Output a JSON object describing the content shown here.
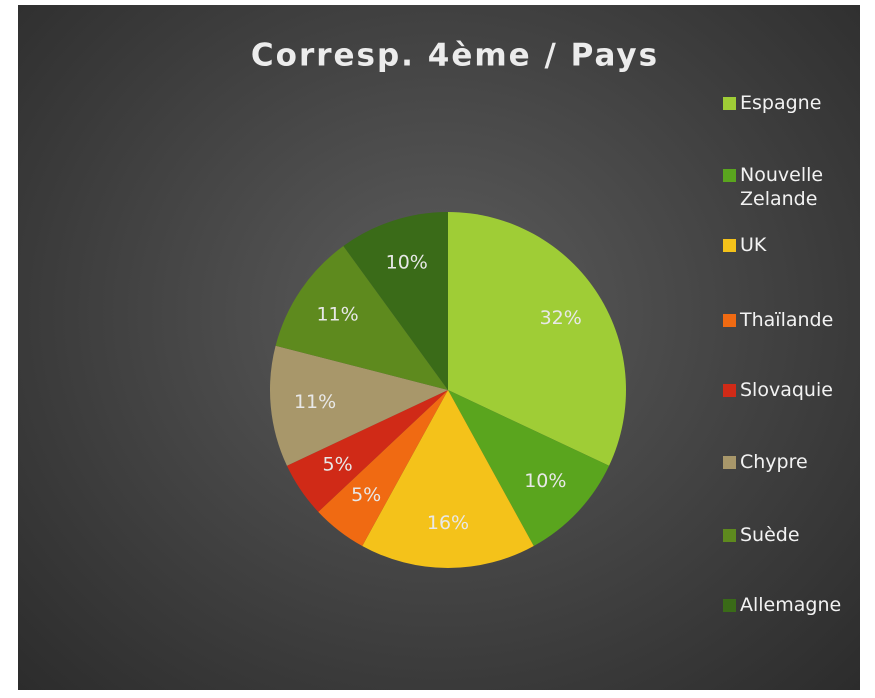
{
  "chart_data": {
    "type": "pie",
    "title": "Corresp. 4ème / Pays",
    "categories": [
      "Espagne",
      "Nouvelle Zelande",
      "UK",
      "Thaïlande",
      "Slovaquie",
      "Chypre",
      "Suède",
      "Allemagne"
    ],
    "values": [
      32,
      10,
      16,
      5,
      5,
      11,
      11,
      10
    ],
    "value_labels": [
      "32%",
      "10%",
      "16%",
      "5%",
      "5%",
      "11%",
      "11%",
      "10%"
    ],
    "colors": [
      "#9fcd36",
      "#5aa51e",
      "#f4c21a",
      "#f06a12",
      "#d02a17",
      "#a8976a",
      "#5e8a1e",
      "#3a6b18"
    ],
    "legend": "right"
  }
}
